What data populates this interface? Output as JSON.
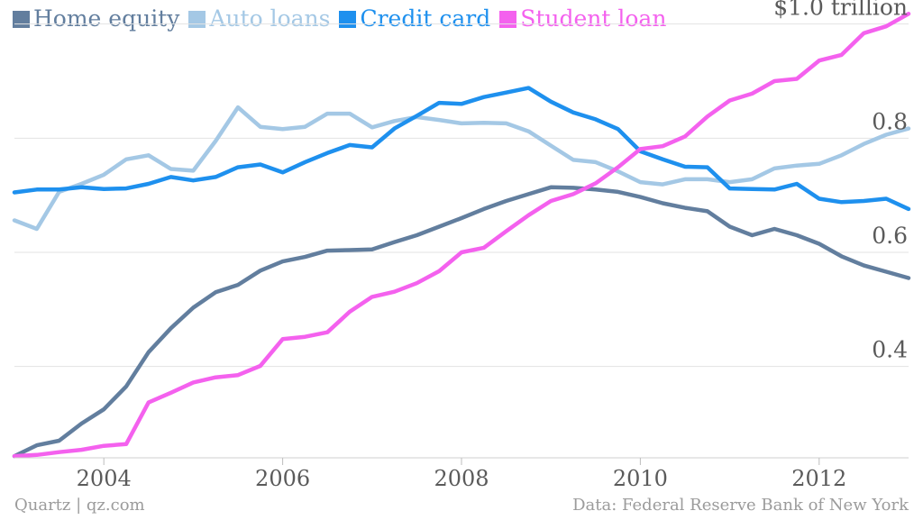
{
  "chart_data": {
    "type": "line",
    "title": "",
    "xlabel": "",
    "ylabel": "",
    "y_unit_label": "$1.0 trillion",
    "xlim": [
      2003.0,
      2013.0
    ],
    "ylim": [
      0.24,
      1.02
    ],
    "x_ticks": [
      2004,
      2006,
      2008,
      2010,
      2012
    ],
    "x_tick_labels": [
      "2004",
      "2006",
      "2008",
      "2010",
      "2012"
    ],
    "y_ticks": [
      0.4,
      0.6,
      0.8,
      1.0
    ],
    "y_tick_labels": [
      "0.4",
      "0.6",
      "0.8",
      "$1.0 trillion"
    ],
    "grid": "horizontal",
    "legend": "top-left",
    "x": [
      2003.0,
      2003.25,
      2003.5,
      2003.75,
      2004.0,
      2004.25,
      2004.5,
      2004.75,
      2005.0,
      2005.25,
      2005.5,
      2005.75,
      2006.0,
      2006.25,
      2006.5,
      2006.75,
      2007.0,
      2007.25,
      2007.5,
      2007.75,
      2008.0,
      2008.25,
      2008.5,
      2008.75,
      2009.0,
      2009.25,
      2009.5,
      2009.75,
      2010.0,
      2010.25,
      2010.5,
      2010.75,
      2011.0,
      2011.25,
      2011.5,
      2011.75,
      2012.0,
      2012.25,
      2012.5,
      2012.75,
      2013.0
    ],
    "series": [
      {
        "name": "Home equity",
        "color": "#627e9e",
        "values": [
          0.243,
          0.262,
          0.27,
          0.3,
          0.325,
          0.365,
          0.425,
          0.467,
          0.503,
          0.53,
          0.543,
          0.568,
          0.584,
          0.592,
          0.603,
          0.604,
          0.605,
          0.618,
          0.63,
          0.645,
          0.66,
          0.676,
          0.69,
          0.702,
          0.714,
          0.713,
          0.71,
          0.706,
          0.697,
          0.686,
          0.678,
          0.672,
          0.645,
          0.63,
          0.641,
          0.63,
          0.615,
          0.593,
          0.577,
          0.566,
          0.555
        ]
      },
      {
        "name": "Auto loans",
        "color": "#a4c8e5",
        "values": [
          0.656,
          0.641,
          0.706,
          0.72,
          0.736,
          0.763,
          0.77,
          0.746,
          0.743,
          0.795,
          0.854,
          0.82,
          0.816,
          0.82,
          0.843,
          0.843,
          0.819,
          0.83,
          0.837,
          0.832,
          0.826,
          0.827,
          0.826,
          0.812,
          0.787,
          0.762,
          0.758,
          0.742,
          0.723,
          0.719,
          0.728,
          0.728,
          0.723,
          0.728,
          0.747,
          0.752,
          0.755,
          0.77,
          0.79,
          0.806,
          0.817
        ]
      },
      {
        "name": "Credit card",
        "color": "#1e90ee",
        "values": [
          0.705,
          0.71,
          0.71,
          0.714,
          0.711,
          0.712,
          0.72,
          0.732,
          0.726,
          0.732,
          0.749,
          0.754,
          0.74,
          0.758,
          0.774,
          0.788,
          0.784,
          0.817,
          0.839,
          0.862,
          0.86,
          0.872,
          0.88,
          0.888,
          0.864,
          0.845,
          0.833,
          0.816,
          0.777,
          0.763,
          0.75,
          0.749,
          0.712,
          0.711,
          0.71,
          0.72,
          0.694,
          0.688,
          0.69,
          0.694,
          0.676
        ]
      },
      {
        "name": "Student loan",
        "color": "#f461ee",
        "values": [
          0.243,
          0.245,
          0.25,
          0.254,
          0.261,
          0.264,
          0.337,
          0.354,
          0.372,
          0.381,
          0.385,
          0.401,
          0.448,
          0.452,
          0.46,
          0.496,
          0.522,
          0.531,
          0.546,
          0.567,
          0.6,
          0.608,
          0.637,
          0.665,
          0.69,
          0.702,
          0.721,
          0.749,
          0.781,
          0.786,
          0.803,
          0.838,
          0.866,
          0.878,
          0.9,
          0.904,
          0.936,
          0.946,
          0.984,
          0.996,
          1.018
        ]
      }
    ]
  },
  "footer": {
    "source_left": "Quartz | qz.com",
    "source_right": "Data: Federal Reserve Bank of New York"
  }
}
